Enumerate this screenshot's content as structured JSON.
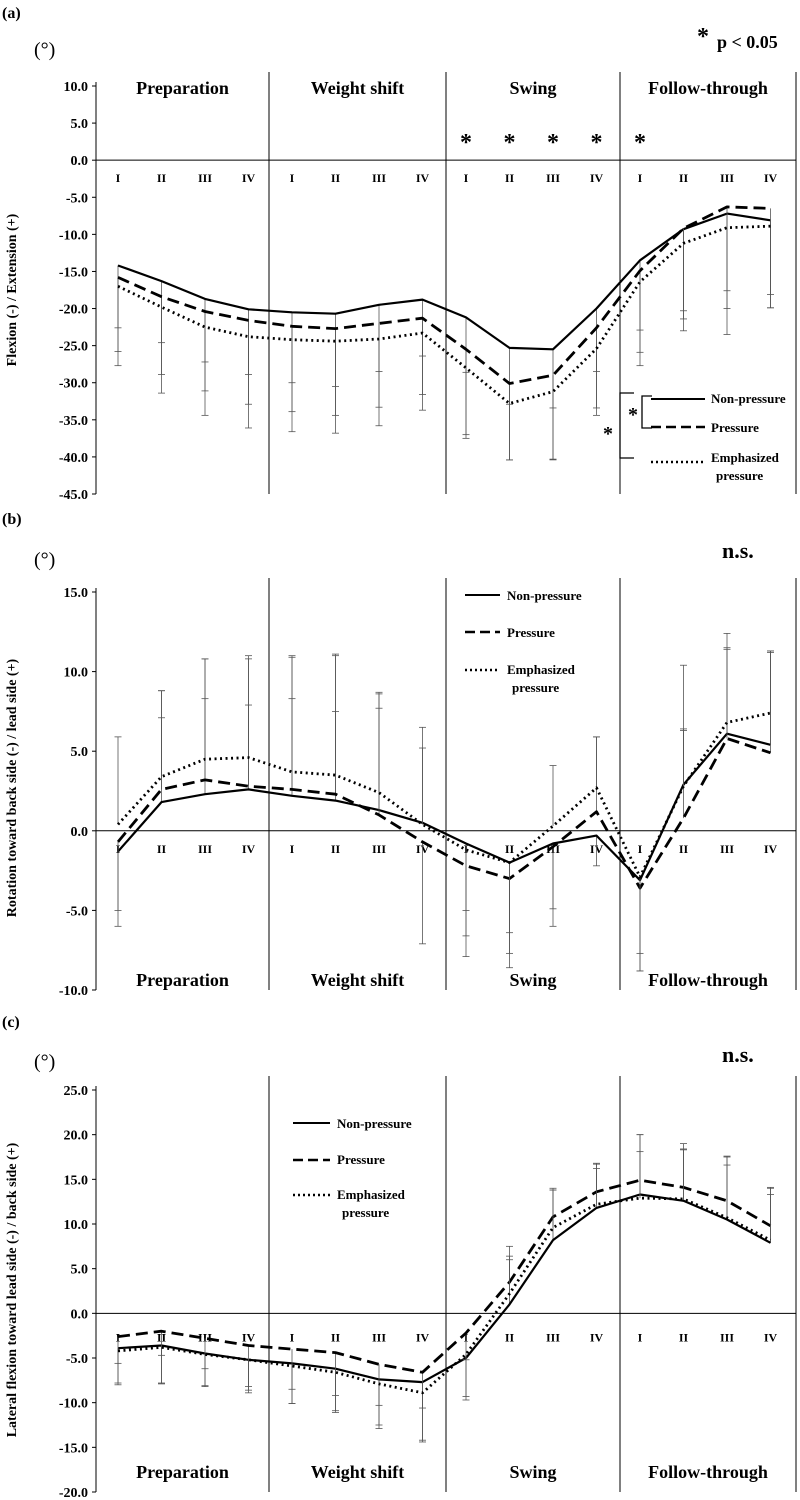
{
  "figure": {
    "stages": [
      "I",
      "II",
      "III",
      "IV"
    ],
    "significance_star": "*",
    "significance_text": "p < 0.05"
  },
  "chart_data": [
    {
      "panel": "(a)",
      "type": "line",
      "unit": "(°)",
      "ylabel": "Flexion (-) / Extension (+)",
      "ylim": [
        -45,
        10
      ],
      "yticks": [
        "10.0",
        "5.0",
        "0.0",
        "-5.0",
        "-10.0",
        "-15.0",
        "-20.0",
        "-25.0",
        "-30.0",
        "-35.0",
        "-40.0",
        "-45.0"
      ],
      "significance": "* p < 0.05",
      "phases": [
        "Preparation",
        "Weight shift",
        "Swing",
        "Follow-through"
      ],
      "categories": [
        "Preparation I",
        "Preparation II",
        "Preparation III",
        "Preparation IV",
        "Weight shift I",
        "Weight shift II",
        "Weight shift III",
        "Weight shift IV",
        "Swing I",
        "Swing II",
        "Swing III",
        "Swing IV",
        "Follow-through I",
        "Follow-through II",
        "Follow-through III",
        "Follow-through IV"
      ],
      "series": [
        {
          "name": "Non-pressure",
          "style": "solid",
          "values": [
            -14.2,
            -16.3,
            -18.7,
            -20.1,
            -20.5,
            -20.7,
            -19.5,
            -18.8,
            -21.2,
            -25.3,
            -25.5,
            -20.0,
            -13.5,
            -9.3,
            -7.2,
            -8.1
          ],
          "error": [
            8.4,
            8.3,
            8.5,
            8.8,
            9.5,
            9.8,
            9.0,
            7.6,
            7.4,
            7.6,
            7.9,
            8.5,
            9.4,
            11.0,
            10.4,
            10.0
          ]
        },
        {
          "name": "Pressure",
          "style": "dashed",
          "values": [
            -15.8,
            -18.4,
            -20.4,
            -21.6,
            -22.4,
            -22.7,
            -22.0,
            -21.3,
            -25.5,
            -30.1,
            -29.0,
            -22.6,
            -14.9,
            -9.2,
            -6.3,
            -6.5
          ],
          "error": [
            10.0,
            10.5,
            10.7,
            11.3,
            11.5,
            11.7,
            11.3,
            10.3,
            11.5,
            10.3,
            11.3,
            10.8,
            11.0,
            12.2,
            13.7,
            13.4
          ]
        },
        {
          "name": "Emphasized pressure",
          "style": "dotted",
          "values": [
            -17.0,
            -19.8,
            -22.5,
            -23.8,
            -24.2,
            -24.4,
            -24.1,
            -23.3,
            -28.0,
            -32.8,
            -31.2,
            -25.4,
            -16.4,
            -11.2,
            -9.1,
            -8.9
          ],
          "error": [
            10.7,
            11.6,
            11.9,
            12.3,
            12.4,
            12.4,
            11.7,
            10.4,
            9.5,
            7.6,
            9.2,
            9.0,
            11.3,
            11.8,
            14.4,
            11.0
          ]
        }
      ],
      "significant_stages": [
        "Swing I",
        "Swing II",
        "Swing III",
        "Swing IV",
        "Follow-through I"
      ],
      "legend": {
        "labels": [
          "Non-pressure",
          "Pressure",
          "Emphasized",
          "pressure"
        ],
        "placement": "bottom-right",
        "brackets": [
          "* Non-pressure vs Pressure",
          "* Non-pressure vs Emphasized pressure"
        ]
      }
    },
    {
      "panel": "(b)",
      "type": "line",
      "unit": "(°)",
      "ylabel": "Rotation toward back side (-) / lead side (+)",
      "ylim": [
        -10,
        15
      ],
      "yticks": [
        "15.0",
        "10.0",
        "5.0",
        "0.0",
        "-5.0",
        "-10.0"
      ],
      "significance": "n.s.",
      "phases": [
        "Preparation",
        "Weight shift",
        "Swing",
        "Follow-through"
      ],
      "categories": [
        "Preparation I",
        "Preparation II",
        "Preparation III",
        "Preparation IV",
        "Weight shift I",
        "Weight shift II",
        "Weight shift III",
        "Weight shift IV",
        "Swing I",
        "Swing II",
        "Swing III",
        "Swing IV",
        "Follow-through I",
        "Follow-through II",
        "Follow-through III",
        "Follow-through IV"
      ],
      "series": [
        {
          "name": "Non-pressure",
          "style": "solid",
          "values": [
            -1.3,
            1.8,
            2.3,
            2.6,
            2.2,
            1.9,
            1.3,
            0.5,
            -0.8,
            -2.0,
            -0.8,
            -0.3,
            -3.1,
            2.9,
            6.1,
            5.4
          ],
          "error": [
            3.7,
            5.3,
            6.0,
            5.3,
            6.1,
            5.6,
            6.4,
            6.0,
            5.8,
            5.7,
            4.1,
            1.9,
            5.7,
            7.5,
            5.3,
            5.8
          ]
        },
        {
          "name": "Pressure",
          "style": "dashed",
          "values": [
            -0.7,
            2.6,
            3.2,
            2.8,
            2.6,
            2.3,
            1.0,
            -0.7,
            -2.2,
            -3.0,
            -1.0,
            1.2,
            -3.6,
            0.8,
            5.8,
            4.9
          ],
          "error": [
            5.3,
            6.2,
            7.6,
            8.0,
            8.4,
            8.7,
            7.6,
            6.4,
            5.7,
            5.6,
            5.0,
            4.7,
            5.2,
            5.6,
            5.7,
            6.4
          ]
        },
        {
          "name": "Emphasized pressure",
          "style": "dotted",
          "values": [
            0.4,
            3.4,
            4.5,
            4.6,
            3.7,
            3.5,
            2.4,
            0.4,
            -1.2,
            -2.0,
            0.3,
            2.7,
            -2.9,
            2.8,
            6.8,
            7.4
          ],
          "error": [
            5.5,
            5.4,
            6.3,
            6.4,
            7.2,
            7.6,
            6.3,
            4.8,
            3.8,
            4.4,
            3.8,
            3.2,
            4.8,
            3.5,
            5.6,
            3.9
          ]
        }
      ],
      "legend": {
        "labels": [
          "Non-pressure",
          "Pressure",
          "Emphasized",
          "pressure"
        ],
        "placement": "top-center"
      }
    },
    {
      "panel": "(c)",
      "type": "line",
      "unit": "(°)",
      "ylabel": "Lateral flexion toward lead side (-) / back side (+)",
      "ylim": [
        -20,
        25
      ],
      "yticks": [
        "25.0",
        "20.0",
        "15.0",
        "10.0",
        "5.0",
        "0.0",
        "-5.0",
        "-10.0",
        "-15.0",
        "-20.0"
      ],
      "significance": "n.s.",
      "phases": [
        "Preparation",
        "Weight shift",
        "Swing",
        "Follow-through"
      ],
      "categories": [
        "Preparation I",
        "Preparation II",
        "Preparation III",
        "Preparation IV",
        "Weight shift I",
        "Weight shift II",
        "Weight shift III",
        "Weight shift IV",
        "Swing I",
        "Swing II",
        "Swing III",
        "Swing IV",
        "Follow-through I",
        "Follow-through II",
        "Follow-through III",
        "Follow-through IV"
      ],
      "series": [
        {
          "name": "Non-pressure",
          "style": "solid",
          "values": [
            -3.9,
            -3.6,
            -4.5,
            -5.2,
            -5.6,
            -6.2,
            -7.4,
            -7.7,
            -5.0,
            1.0,
            8.2,
            11.8,
            13.3,
            12.6,
            10.5,
            7.9
          ],
          "error": [
            4.1,
            4.3,
            3.6,
            3.7,
            4.5,
            4.7,
            5.5,
            6.5,
            4.7,
            5.0,
            5.8,
            4.4,
            6.7,
            6.4,
            6.1,
            5.4
          ]
        },
        {
          "name": "Pressure",
          "style": "dashed",
          "values": [
            -2.6,
            -2.0,
            -2.8,
            -3.6,
            -4.0,
            -4.4,
            -5.7,
            -6.6,
            -2.2,
            3.5,
            10.8,
            13.6,
            14.9,
            14.1,
            12.6,
            9.8
          ],
          "error": [
            3.0,
            2.7,
            3.4,
            4.6,
            4.5,
            4.8,
            4.6,
            4.0,
            3.0,
            4.0,
            3.0,
            3.2,
            5.1,
            4.3,
            5.0,
            4.3
          ]
        },
        {
          "name": "Emphasized pressure",
          "style": "dotted",
          "values": [
            -4.2,
            -3.8,
            -4.6,
            -5.2,
            -5.9,
            -6.6,
            -7.9,
            -8.9,
            -4.6,
            2.2,
            9.6,
            12.2,
            12.9,
            12.8,
            10.7,
            8.2
          ],
          "error": [
            3.6,
            4.0,
            3.6,
            3.4,
            4.2,
            4.5,
            4.6,
            5.5,
            4.7,
            4.2,
            4.2,
            4.5,
            5.2,
            5.5,
            6.8,
            5.8
          ]
        }
      ],
      "legend": {
        "labels": [
          "Non-pressure",
          "Pressure",
          "Emphasized",
          "pressure"
        ],
        "placement": "top-center"
      }
    }
  ]
}
